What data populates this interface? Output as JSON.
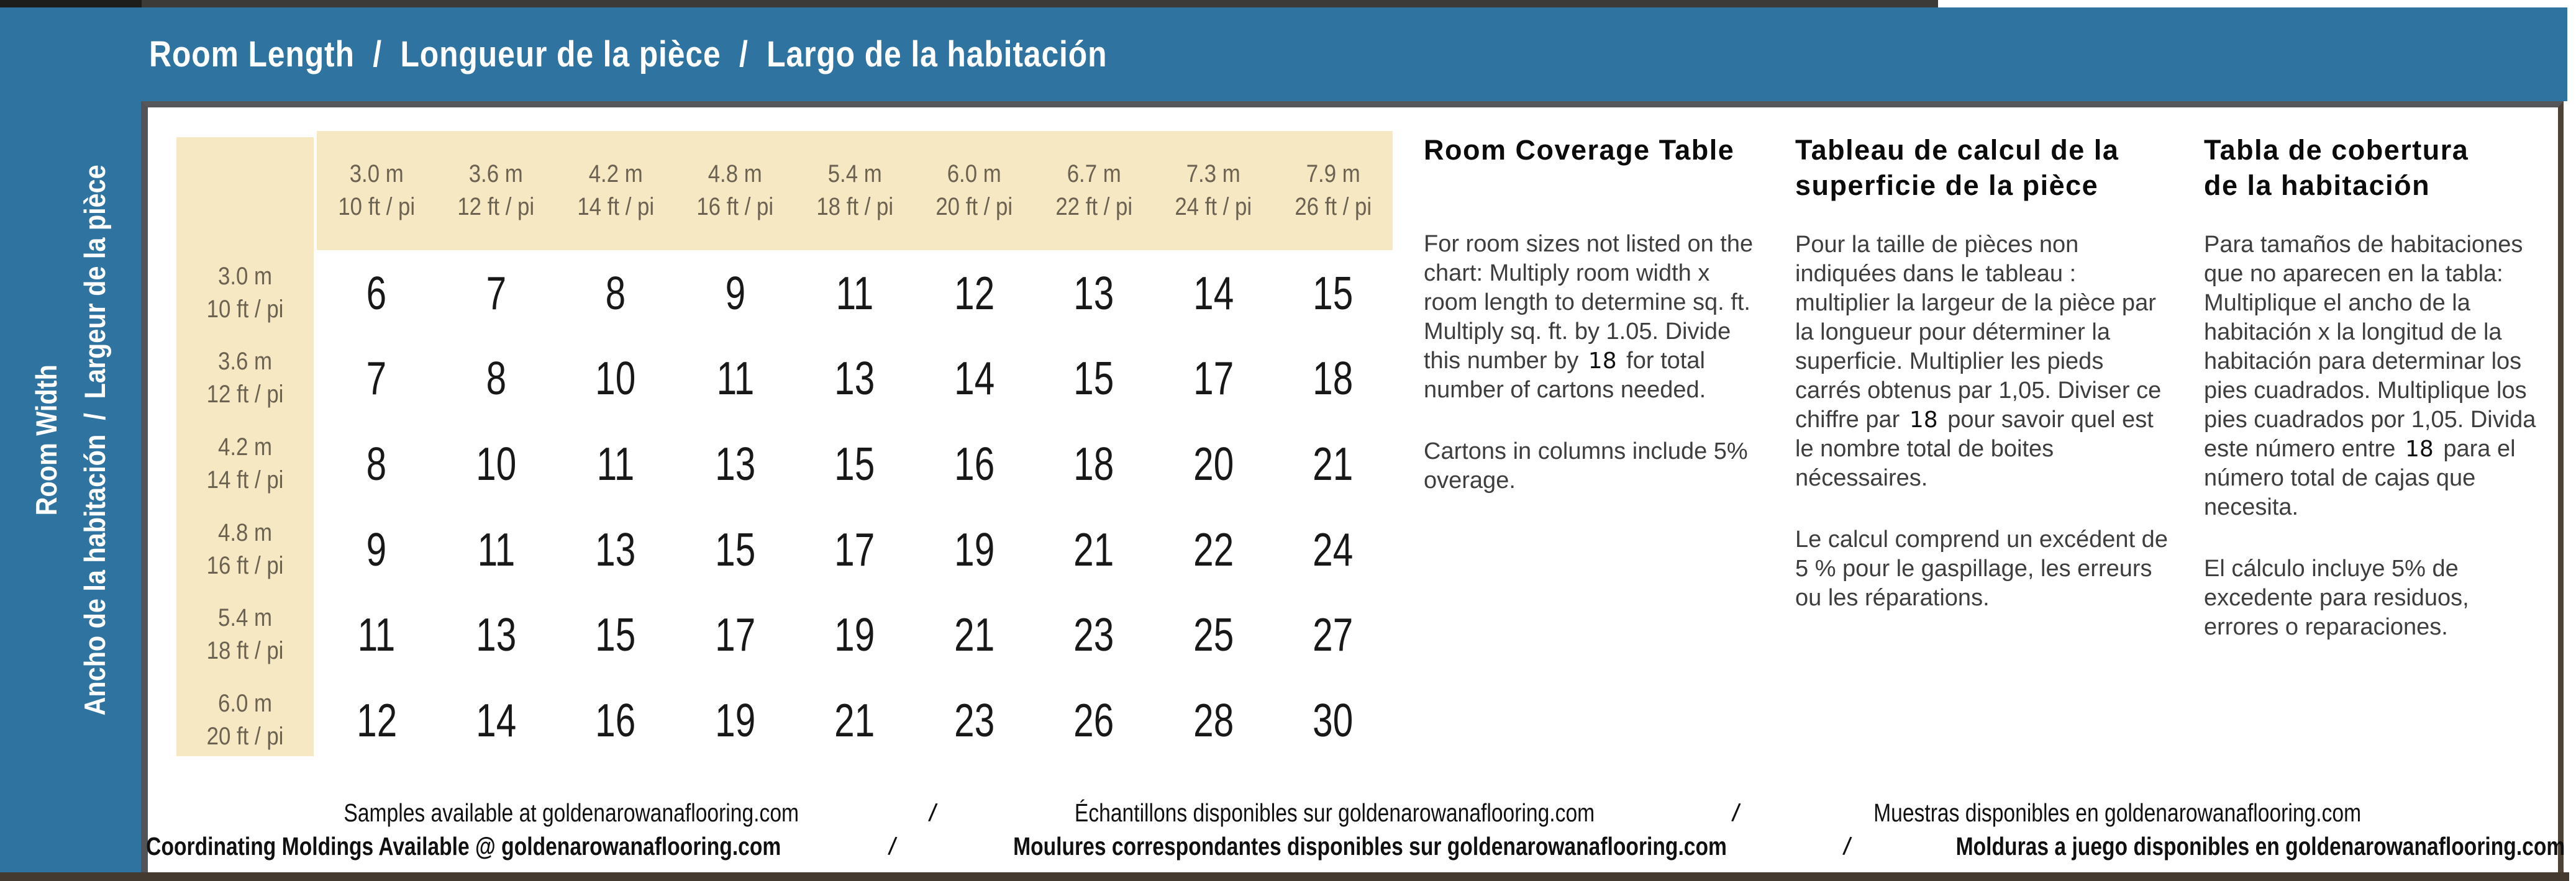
{
  "header": {
    "segments": [
      "Room Length",
      "Longueur de la pièce",
      "Largo de la habitación"
    ],
    "separator": "/"
  },
  "sidebar": {
    "line1": "Room Width",
    "line2_segments": [
      "Ancho de la habitación",
      "Largeur de la pièce"
    ],
    "separator": "/"
  },
  "table": {
    "columns": [
      {
        "m": "3.0 m",
        "ft": "10 ft / pi"
      },
      {
        "m": "3.6 m",
        "ft": "12 ft / pi"
      },
      {
        "m": "4.2 m",
        "ft": "14 ft / pi"
      },
      {
        "m": "4.8 m",
        "ft": "16 ft / pi"
      },
      {
        "m": "5.4 m",
        "ft": "18 ft / pi"
      },
      {
        "m": "6.0 m",
        "ft": "20 ft / pi"
      },
      {
        "m": "6.7 m",
        "ft": "22 ft / pi"
      },
      {
        "m": "7.3 m",
        "ft": "24 ft / pi"
      },
      {
        "m": "7.9 m",
        "ft": "26 ft / pi"
      }
    ],
    "rows": [
      {
        "m": "3.0 m",
        "ft": "10 ft / pi",
        "values": [
          6,
          7,
          8,
          9,
          11,
          12,
          13,
          14,
          15
        ]
      },
      {
        "m": "3.6 m",
        "ft": "12 ft / pi",
        "values": [
          7,
          8,
          10,
          11,
          13,
          14,
          15,
          17,
          18
        ]
      },
      {
        "m": "4.2 m",
        "ft": "14 ft / pi",
        "values": [
          8,
          10,
          11,
          13,
          15,
          16,
          18,
          20,
          21
        ]
      },
      {
        "m": "4.8 m",
        "ft": "16 ft / pi",
        "values": [
          9,
          11,
          13,
          15,
          17,
          19,
          21,
          22,
          24
        ]
      },
      {
        "m": "5.4 m",
        "ft": "18 ft / pi",
        "values": [
          11,
          13,
          15,
          17,
          19,
          21,
          23,
          25,
          27
        ]
      },
      {
        "m": "6.0 m",
        "ft": "20 ft / pi",
        "values": [
          12,
          14,
          16,
          19,
          21,
          23,
          26,
          28,
          30
        ]
      }
    ]
  },
  "info_columns": [
    {
      "lang": "en",
      "heading_lines": [
        "Room Coverage Table"
      ],
      "para1_before": "For room sizes not listed on the chart: Multiply room width x room length to determine sq. ft. Multiply sq. ft. by 1.05. Divide this number by",
      "value": "18",
      "para1_after": "for total number of cartons needed.",
      "para2": "Cartons in columns include 5% overage."
    },
    {
      "lang": "fr",
      "heading_lines": [
        "Tableau de calcul de la",
        "superficie de la pièce"
      ],
      "para1_before": "Pour la taille de pièces non indiquées dans le tableau :  multiplier la largeur de la pièce par la longueur pour déterminer la superficie. Multiplier les pieds carrés obtenus par 1,05. Diviser ce chiffre par",
      "value": "18",
      "para1_after": "pour savoir quel est le nombre total de boites nécessaires.",
      "para2": "Le calcul comprend un excédent de 5 % pour le gaspillage, les erreurs ou les réparations."
    },
    {
      "lang": "es",
      "heading_lines": [
        "Tabla de cobertura",
        "de la habitación"
      ],
      "para1_before": "Para tamaños de habitaciones que no aparecen en la tabla: Multiplique el ancho de la habitación x la longitud de la habitación para determinar los pies cuadrados. Multiplique los pies cuadrados por 1,05. Divida este número entre",
      "value": "18",
      "para1_after": "para el número total de cajas que necesita.",
      "para2": "El cálculo incluye 5% de excedente para residuos, errores o reparaciones."
    }
  ],
  "footer": {
    "separator": "/",
    "line1": [
      "Samples available at goldenarowanaflooring.com",
      "Échantillons disponibles sur goldenarowanaflooring.com",
      "Muestras disponibles en goldenarowanaflooring.com"
    ],
    "line2": [
      "Coordinating Moldings Available @ goldenarowanaflooring.com",
      "Moulures correspondantes disponibles sur goldenarowanaflooring.com",
      "Molduras a juego disponibles en goldenarowanaflooring.com"
    ]
  },
  "colors": {
    "brand_blue": "#2f74a1",
    "cream": "#f6e8c3",
    "table_label_text": "#6b6251",
    "number_text": "#181818",
    "body_text": "#3e3e3e",
    "heading_text": "#0b0b0b",
    "border_gray": "#56575b",
    "border_brown": "#4e4337",
    "bottom_bar": "#443a2f",
    "header_text": "#ffffff"
  }
}
